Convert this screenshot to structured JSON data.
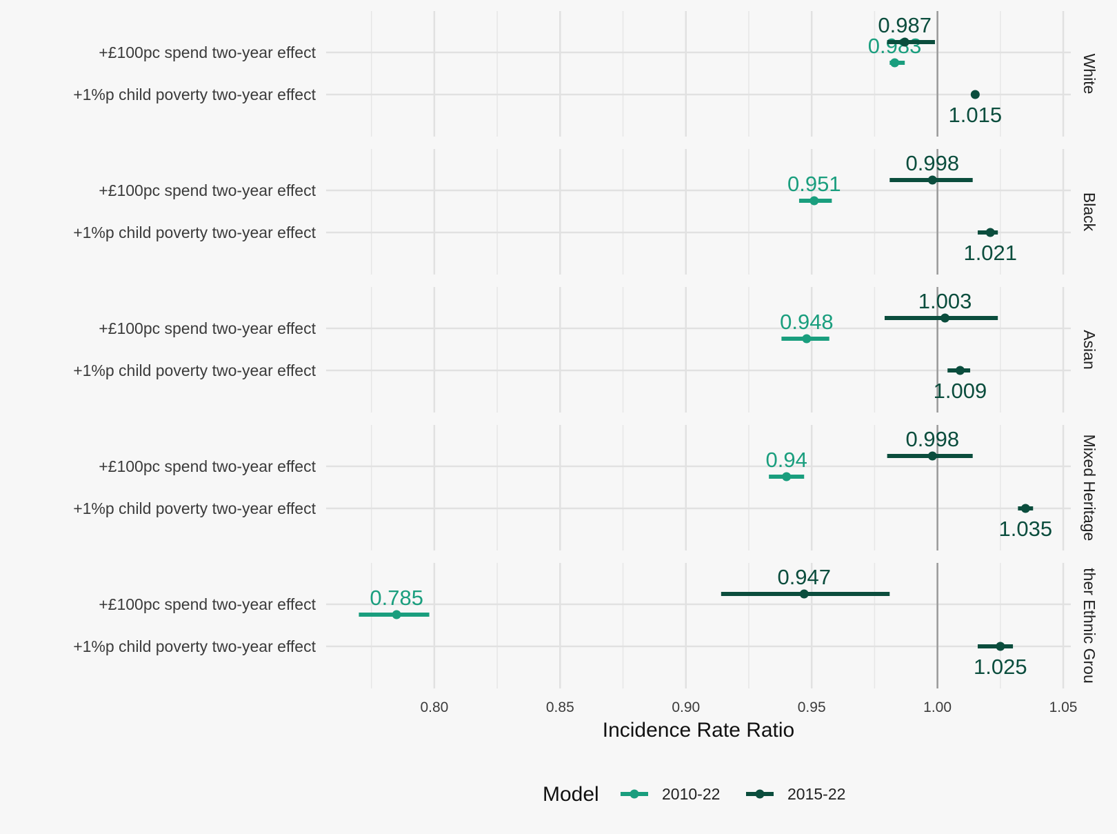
{
  "chart_data": {
    "type": "forest",
    "xlabel": "Incidence Rate Ratio",
    "xlim": [
      0.757,
      1.053
    ],
    "x_ticks": [
      "0.80",
      "0.85",
      "0.90",
      "0.95",
      "1.00",
      "1.05"
    ],
    "reference_line": 1.0,
    "grid": true,
    "rows": [
      "+£100pc spend two-year effect",
      "+1%p child poverty two-year effect"
    ],
    "panels": [
      {
        "name": "White",
        "estimates": [
          {
            "row": 0,
            "series": "2010-22",
            "value": 0.983,
            "low": 0.981,
            "high": 0.987,
            "label": "0.983"
          },
          {
            "row": 0,
            "series": "2015-22",
            "value": 0.987,
            "low": 0.98,
            "high": 0.999,
            "label": "0.987"
          },
          {
            "row": 1,
            "series": "2015-22",
            "value": 1.015,
            "low": 1.014,
            "high": 1.016,
            "label": "1.015"
          }
        ]
      },
      {
        "name": "Black",
        "estimates": [
          {
            "row": 0,
            "series": "2010-22",
            "value": 0.951,
            "low": 0.945,
            "high": 0.958,
            "label": "0.951"
          },
          {
            "row": 0,
            "series": "2015-22",
            "value": 0.998,
            "low": 0.981,
            "high": 1.014,
            "label": "0.998"
          },
          {
            "row": 1,
            "series": "2015-22",
            "value": 1.021,
            "low": 1.016,
            "high": 1.024,
            "label": "1.021"
          }
        ]
      },
      {
        "name": "Asian",
        "estimates": [
          {
            "row": 0,
            "series": "2010-22",
            "value": 0.948,
            "low": 0.938,
            "high": 0.957,
            "label": "0.948"
          },
          {
            "row": 0,
            "series": "2015-22",
            "value": 1.003,
            "low": 0.979,
            "high": 1.024,
            "label": "1.003"
          },
          {
            "row": 1,
            "series": "2015-22",
            "value": 1.009,
            "low": 1.004,
            "high": 1.013,
            "label": "1.009"
          }
        ]
      },
      {
        "name": "Mixed Heritage",
        "estimates": [
          {
            "row": 0,
            "series": "2010-22",
            "value": 0.94,
            "low": 0.933,
            "high": 0.947,
            "label": "0.94"
          },
          {
            "row": 0,
            "series": "2015-22",
            "value": 0.998,
            "low": 0.98,
            "high": 1.014,
            "label": "0.998"
          },
          {
            "row": 1,
            "series": "2015-22",
            "value": 1.035,
            "low": 1.032,
            "high": 1.038,
            "label": "1.035"
          }
        ]
      },
      {
        "name": "ther Ethnic Grou",
        "estimates": [
          {
            "row": 0,
            "series": "2010-22",
            "value": 0.785,
            "low": 0.77,
            "high": 0.798,
            "label": "0.785"
          },
          {
            "row": 0,
            "series": "2015-22",
            "value": 0.947,
            "low": 0.914,
            "high": 0.981,
            "label": "0.947"
          },
          {
            "row": 1,
            "series": "2015-22",
            "value": 1.025,
            "low": 1.016,
            "high": 1.03,
            "label": "1.025"
          }
        ]
      }
    ],
    "series": [
      {
        "name": "2010-22",
        "color": "#1a9e7e"
      },
      {
        "name": "2015-22",
        "color": "#0b4d3d"
      }
    ],
    "legend": {
      "title": "Model",
      "position": "bottom"
    }
  }
}
